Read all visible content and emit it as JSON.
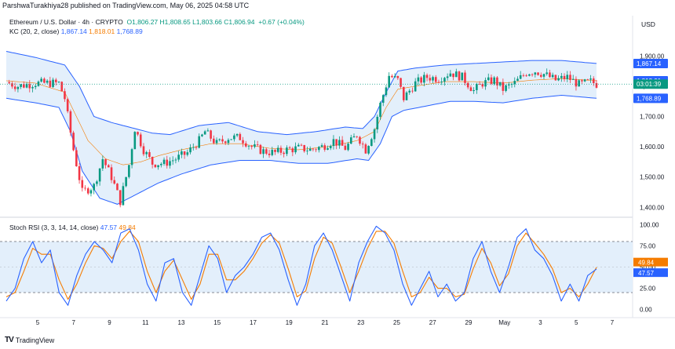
{
  "watermark": "ParshwaTurakhiya28 published on TradingView.com, May 06, 2025 04:58 UTC",
  "currency": "USD",
  "brand": "TradingView",
  "brand_logo": "TV",
  "legend": {
    "symbol": "Ethereum / U.S. Dollar · 4h · CRYPTO",
    "ohlc": "O1,806.27  H1,808.65  L1,803.66  C1,806.94",
    "change": "+0.67 (+0.04%)",
    "kc_label": "KC (20, 2, close)",
    "kc_values": [
      "1,867.14",
      "1,818.01",
      "1,768.89"
    ],
    "rsi_label": "Stoch RSI (3, 3, 14, 14, close)",
    "rsi_values": [
      "47.57",
      "49.84"
    ]
  },
  "colors": {
    "up": "#089981",
    "down": "#f23645",
    "band": "#2962ff",
    "band_fill": "#e3effb",
    "k_line": "#2962ff",
    "d_line": "#f57c00",
    "current_price": "#089981"
  },
  "chart_data": [
    {
      "type": "candlestick",
      "x_ticks": [
        "5",
        "7",
        "9",
        "11",
        "13",
        "15",
        "17",
        "19",
        "21",
        "23",
        "25",
        "27",
        "29",
        "May",
        "3",
        "5",
        "7"
      ],
      "y_ticks": [
        1400,
        1500,
        1600,
        1700,
        1800,
        1900
      ],
      "ylim": [
        1380,
        1950
      ],
      "last_price": 1806.94,
      "countdown": "03:01:39",
      "price_labels": {
        "upper": "1,867.14",
        "middle": "1,818.01",
        "lower": "1,768.89",
        "last": "03:01:39"
      },
      "close_path": [
        [
          0,
          1813
        ],
        [
          4,
          1800
        ],
        [
          10,
          1810
        ],
        [
          18,
          1810
        ],
        [
          20,
          1760
        ],
        [
          23,
          1590
        ],
        [
          26,
          1450
        ],
        [
          30,
          1470
        ],
        [
          33,
          1560
        ],
        [
          36,
          1500
        ],
        [
          39,
          1420
        ],
        [
          42,
          1540
        ],
        [
          44,
          1660
        ],
        [
          47,
          1590
        ],
        [
          50,
          1545
        ],
        [
          54,
          1545
        ],
        [
          58,
          1560
        ],
        [
          62,
          1580
        ],
        [
          66,
          1620
        ],
        [
          68,
          1650
        ],
        [
          72,
          1610
        ],
        [
          76,
          1630
        ],
        [
          80,
          1630
        ],
        [
          84,
          1600
        ],
        [
          88,
          1585
        ],
        [
          92,
          1580
        ],
        [
          96,
          1590
        ],
        [
          100,
          1595
        ],
        [
          104,
          1590
        ],
        [
          108,
          1600
        ],
        [
          112,
          1620
        ],
        [
          116,
          1595
        ],
        [
          120,
          1640
        ],
        [
          123,
          1590
        ],
        [
          126,
          1660
        ],
        [
          128,
          1740
        ],
        [
          131,
          1835
        ],
        [
          134,
          1820
        ],
        [
          136,
          1760
        ],
        [
          140,
          1810
        ],
        [
          144,
          1830
        ],
        [
          148,
          1825
        ],
        [
          152,
          1845
        ],
        [
          156,
          1830
        ],
        [
          160,
          1785
        ],
        [
          163,
          1810
        ],
        [
          167,
          1820
        ],
        [
          170,
          1790
        ],
        [
          174,
          1810
        ],
        [
          178,
          1845
        ],
        [
          181,
          1850
        ],
        [
          184,
          1840
        ],
        [
          188,
          1820
        ],
        [
          192,
          1830
        ],
        [
          196,
          1805
        ],
        [
          200,
          1815
        ],
        [
          202,
          1807
        ]
      ],
      "keltner": {
        "upper": [
          [
            0,
            1915
          ],
          [
            10,
            1895
          ],
          [
            20,
            1870
          ],
          [
            25,
            1800
          ],
          [
            30,
            1700
          ],
          [
            36,
            1680
          ],
          [
            44,
            1660
          ],
          [
            50,
            1645
          ],
          [
            56,
            1640
          ],
          [
            66,
            1670
          ],
          [
            76,
            1680
          ],
          [
            86,
            1650
          ],
          [
            96,
            1640
          ],
          [
            106,
            1650
          ],
          [
            116,
            1665
          ],
          [
            122,
            1660
          ],
          [
            126,
            1700
          ],
          [
            130,
            1780
          ],
          [
            134,
            1850
          ],
          [
            140,
            1860
          ],
          [
            150,
            1870
          ],
          [
            160,
            1875
          ],
          [
            170,
            1880
          ],
          [
            180,
            1885
          ],
          [
            190,
            1885
          ],
          [
            202,
            1875
          ]
        ],
        "middle": [
          [
            0,
            1818
          ],
          [
            10,
            1810
          ],
          [
            20,
            1780
          ],
          [
            24,
            1700
          ],
          [
            28,
            1620
          ],
          [
            34,
            1560
          ],
          [
            40,
            1540
          ],
          [
            46,
            1550
          ],
          [
            52,
            1570
          ],
          [
            60,
            1590
          ],
          [
            70,
            1610
          ],
          [
            80,
            1610
          ],
          [
            90,
            1595
          ],
          [
            100,
            1590
          ],
          [
            110,
            1600
          ],
          [
            120,
            1620
          ],
          [
            126,
            1650
          ],
          [
            130,
            1730
          ],
          [
            134,
            1790
          ],
          [
            140,
            1800
          ],
          [
            150,
            1815
          ],
          [
            160,
            1815
          ],
          [
            170,
            1810
          ],
          [
            180,
            1820
          ],
          [
            190,
            1825
          ],
          [
            202,
            1818
          ]
        ],
        "lower": [
          [
            0,
            1760
          ],
          [
            10,
            1745
          ],
          [
            18,
            1730
          ],
          [
            22,
            1650
          ],
          [
            26,
            1520
          ],
          [
            32,
            1430
          ],
          [
            38,
            1410
          ],
          [
            44,
            1440
          ],
          [
            52,
            1480
          ],
          [
            60,
            1510
          ],
          [
            70,
            1540
          ],
          [
            80,
            1555
          ],
          [
            90,
            1555
          ],
          [
            100,
            1545
          ],
          [
            110,
            1545
          ],
          [
            120,
            1560
          ],
          [
            124,
            1555
          ],
          [
            128,
            1610
          ],
          [
            132,
            1700
          ],
          [
            136,
            1720
          ],
          [
            144,
            1735
          ],
          [
            152,
            1750
          ],
          [
            160,
            1750
          ],
          [
            170,
            1745
          ],
          [
            180,
            1760
          ],
          [
            190,
            1770
          ],
          [
            202,
            1760
          ]
        ]
      }
    },
    {
      "type": "line",
      "title": "Stoch RSI (3, 3, 14, 14, close)",
      "y_ticks": [
        0,
        25,
        50,
        75,
        100
      ],
      "ylim": [
        -3,
        103
      ],
      "bands": [
        20,
        80
      ],
      "series": [
        {
          "name": "K",
          "current": 47.57,
          "values": [
            10,
            25,
            60,
            80,
            55,
            70,
            20,
            5,
            40,
            65,
            80,
            70,
            55,
            90,
            95,
            70,
            30,
            10,
            55,
            60,
            20,
            5,
            40,
            75,
            60,
            20,
            40,
            50,
            65,
            85,
            90,
            70,
            35,
            5,
            30,
            75,
            90,
            70,
            40,
            10,
            55,
            80,
            98,
            90,
            70,
            30,
            5,
            25,
            45,
            15,
            30,
            10,
            20,
            60,
            80,
            45,
            20,
            50,
            85,
            95,
            70,
            60,
            40,
            10,
            30,
            10,
            40,
            47.57
          ]
        },
        {
          "name": "D",
          "current": 49.84,
          "values": [
            15,
            20,
            45,
            72,
            65,
            65,
            35,
            12,
            30,
            55,
            75,
            72,
            60,
            80,
            92,
            80,
            45,
            20,
            45,
            58,
            35,
            12,
            30,
            65,
            65,
            35,
            35,
            45,
            60,
            78,
            88,
            78,
            48,
            15,
            22,
            60,
            85,
            78,
            50,
            20,
            45,
            72,
            92,
            92,
            78,
            45,
            15,
            20,
            38,
            25,
            25,
            15,
            18,
            48,
            72,
            55,
            28,
            42,
            75,
            90,
            78,
            65,
            48,
            20,
            25,
            15,
            30,
            49.84
          ]
        }
      ]
    }
  ]
}
